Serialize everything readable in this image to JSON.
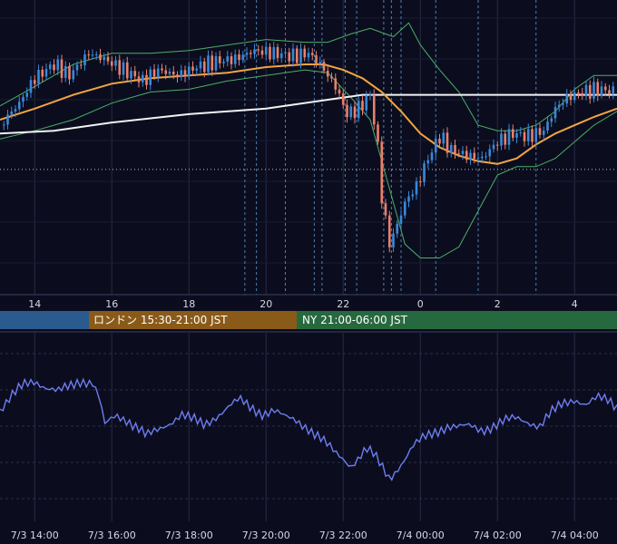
{
  "colors": {
    "background": "#0b0d1f",
    "grid": "#262a44",
    "candle_up": "#3a88d8",
    "candle_down": "#e9806a",
    "ma_short": "#f2a540",
    "ma_long": "#f2f2f2",
    "bollinger": "#4caf65",
    "oscillator": "#6f7df0",
    "session_tokyo": "#2b5a8e",
    "session_london": "#8a5a18",
    "session_ny": "#27693f"
  },
  "sessions": {
    "tokyo": {
      "label": ""
    },
    "london": {
      "label": "ロンドン 15:30-21:00 JST"
    },
    "ny": {
      "label": "NY 21:00-06:00 JST"
    }
  },
  "chart_data": [
    {
      "type": "candlestick",
      "title": "",
      "x_axis_ticks": [
        "14",
        "16",
        "18",
        "20",
        "22",
        "0",
        "2",
        "4"
      ],
      "x_range_hours": [
        13.1,
        29.1
      ],
      "y_range": [
        0,
        1
      ],
      "grid": true,
      "event_lines_hours": [
        19.45,
        19.75,
        20.5,
        21.25,
        21.45,
        22.05,
        22.35,
        23.05,
        23.25,
        23.5,
        0.4,
        1.5,
        3.0
      ],
      "reference_line_level": 0.42,
      "close_points": [
        [
          13.1,
          0.58
        ],
        [
          13.6,
          0.66
        ],
        [
          14.0,
          0.75
        ],
        [
          14.5,
          0.8
        ],
        [
          14.9,
          0.76
        ],
        [
          15.4,
          0.84
        ],
        [
          15.8,
          0.82
        ],
        [
          16.3,
          0.78
        ],
        [
          16.8,
          0.74
        ],
        [
          17.2,
          0.78
        ],
        [
          17.7,
          0.76
        ],
        [
          18.2,
          0.79
        ],
        [
          18.7,
          0.81
        ],
        [
          19.2,
          0.82
        ],
        [
          19.7,
          0.85
        ],
        [
          20.2,
          0.84
        ],
        [
          20.7,
          0.83
        ],
        [
          21.1,
          0.84
        ],
        [
          21.4,
          0.8
        ],
        [
          21.8,
          0.72
        ],
        [
          22.1,
          0.62
        ],
        [
          22.4,
          0.64
        ],
        [
          22.7,
          0.69
        ],
        [
          22.9,
          0.5
        ],
        [
          23.0,
          0.32
        ],
        [
          23.2,
          0.15
        ],
        [
          23.4,
          0.22
        ],
        [
          23.6,
          0.3
        ],
        [
          23.9,
          0.36
        ],
        [
          24.2,
          0.46
        ],
        [
          24.5,
          0.54
        ],
        [
          24.8,
          0.49
        ],
        [
          25.2,
          0.47
        ],
        [
          25.6,
          0.46
        ],
        [
          26.0,
          0.52
        ],
        [
          26.4,
          0.55
        ],
        [
          26.8,
          0.54
        ],
        [
          27.2,
          0.56
        ],
        [
          27.5,
          0.64
        ],
        [
          27.8,
          0.68
        ],
        [
          28.2,
          0.7
        ],
        [
          28.6,
          0.71
        ],
        [
          29.1,
          0.7
        ]
      ],
      "ma_short_points": [
        [
          13.1,
          0.6
        ],
        [
          14.0,
          0.64
        ],
        [
          15.0,
          0.69
        ],
        [
          16.0,
          0.73
        ],
        [
          17.0,
          0.75
        ],
        [
          18.0,
          0.76
        ],
        [
          19.0,
          0.77
        ],
        [
          20.0,
          0.79
        ],
        [
          21.0,
          0.8
        ],
        [
          21.5,
          0.8
        ],
        [
          22.0,
          0.78
        ],
        [
          22.5,
          0.75
        ],
        [
          23.0,
          0.7
        ],
        [
          23.5,
          0.63
        ],
        [
          24.0,
          0.55
        ],
        [
          24.5,
          0.5
        ],
        [
          25.0,
          0.47
        ],
        [
          25.5,
          0.45
        ],
        [
          26.0,
          0.44
        ],
        [
          26.5,
          0.46
        ],
        [
          27.0,
          0.51
        ],
        [
          27.5,
          0.55
        ],
        [
          28.0,
          0.58
        ],
        [
          28.5,
          0.61
        ],
        [
          29.1,
          0.64
        ]
      ],
      "ma_long_points": [
        [
          13.1,
          0.55
        ],
        [
          14.5,
          0.56
        ],
        [
          16.0,
          0.59
        ],
        [
          18.0,
          0.62
        ],
        [
          20.0,
          0.64
        ],
        [
          21.5,
          0.67
        ],
        [
          22.5,
          0.69
        ],
        [
          23.5,
          0.69
        ],
        [
          25.0,
          0.69
        ],
        [
          27.0,
          0.69
        ],
        [
          29.1,
          0.69
        ]
      ],
      "bollinger_upper_points": [
        [
          13.1,
          0.65
        ],
        [
          14.0,
          0.72
        ],
        [
          15.0,
          0.8
        ],
        [
          16.0,
          0.84
        ],
        [
          17.0,
          0.84
        ],
        [
          18.0,
          0.85
        ],
        [
          19.0,
          0.87
        ],
        [
          20.0,
          0.89
        ],
        [
          21.0,
          0.88
        ],
        [
          21.6,
          0.88
        ],
        [
          22.2,
          0.91
        ],
        [
          22.7,
          0.93
        ],
        [
          23.3,
          0.9
        ],
        [
          23.7,
          0.95
        ],
        [
          24.0,
          0.87
        ],
        [
          24.5,
          0.78
        ],
        [
          25.0,
          0.7
        ],
        [
          25.5,
          0.58
        ],
        [
          26.0,
          0.56
        ],
        [
          26.5,
          0.56
        ],
        [
          27.0,
          0.58
        ],
        [
          27.5,
          0.63
        ],
        [
          28.0,
          0.71
        ],
        [
          28.5,
          0.76
        ],
        [
          29.1,
          0.76
        ]
      ],
      "bollinger_lower_points": [
        [
          13.1,
          0.53
        ],
        [
          14.0,
          0.56
        ],
        [
          15.0,
          0.6
        ],
        [
          16.0,
          0.66
        ],
        [
          17.0,
          0.7
        ],
        [
          18.0,
          0.71
        ],
        [
          19.0,
          0.74
        ],
        [
          20.0,
          0.76
        ],
        [
          21.0,
          0.78
        ],
        [
          21.6,
          0.77
        ],
        [
          22.2,
          0.68
        ],
        [
          22.7,
          0.6
        ],
        [
          23.2,
          0.35
        ],
        [
          23.6,
          0.15
        ],
        [
          24.0,
          0.1
        ],
        [
          24.5,
          0.1
        ],
        [
          25.0,
          0.14
        ],
        [
          25.5,
          0.27
        ],
        [
          26.0,
          0.4
        ],
        [
          26.5,
          0.43
        ],
        [
          27.0,
          0.43
        ],
        [
          27.5,
          0.46
        ],
        [
          28.0,
          0.52
        ],
        [
          28.5,
          0.58
        ],
        [
          29.1,
          0.63
        ]
      ]
    },
    {
      "type": "line",
      "title": "",
      "x_axis_ticks": [
        "7/3 14:00",
        "7/3 16:00",
        "7/3 18:00",
        "7/3 20:00",
        "7/3 22:00",
        "7/4 00:00",
        "7/4 02:00",
        "7/4 04:00"
      ],
      "x_range_hours": [
        13.1,
        29.1
      ],
      "y_range": [
        0,
        1
      ],
      "grid": true,
      "series": [
        {
          "points": [
            [
              13.1,
              0.6
            ],
            [
              13.4,
              0.68
            ],
            [
              13.7,
              0.75
            ],
            [
              14.0,
              0.78
            ],
            [
              14.3,
              0.74
            ],
            [
              14.6,
              0.71
            ],
            [
              14.9,
              0.74
            ],
            [
              15.2,
              0.78
            ],
            [
              15.5,
              0.77
            ],
            [
              15.7,
              0.66
            ],
            [
              15.8,
              0.5
            ],
            [
              16.1,
              0.56
            ],
            [
              16.4,
              0.54
            ],
            [
              16.7,
              0.49
            ],
            [
              16.9,
              0.44
            ],
            [
              17.2,
              0.47
            ],
            [
              17.5,
              0.52
            ],
            [
              17.8,
              0.58
            ],
            [
              18.1,
              0.54
            ],
            [
              18.4,
              0.5
            ],
            [
              18.7,
              0.56
            ],
            [
              19.0,
              0.62
            ],
            [
              19.3,
              0.66
            ],
            [
              19.6,
              0.61
            ],
            [
              19.9,
              0.58
            ],
            [
              20.2,
              0.6
            ],
            [
              20.5,
              0.55
            ],
            [
              20.8,
              0.53
            ],
            [
              21.1,
              0.49
            ],
            [
              21.4,
              0.43
            ],
            [
              21.6,
              0.38
            ],
            [
              21.8,
              0.33
            ],
            [
              22.0,
              0.3
            ],
            [
              22.2,
              0.26
            ],
            [
              22.4,
              0.31
            ],
            [
              22.6,
              0.36
            ],
            [
              22.8,
              0.32
            ],
            [
              23.0,
              0.25
            ],
            [
              23.2,
              0.18
            ],
            [
              23.4,
              0.24
            ],
            [
              23.6,
              0.3
            ],
            [
              23.8,
              0.37
            ],
            [
              24.1,
              0.43
            ],
            [
              24.4,
              0.47
            ],
            [
              24.7,
              0.5
            ],
            [
              25.0,
              0.49
            ],
            [
              25.3,
              0.5
            ],
            [
              25.6,
              0.48
            ],
            [
              25.9,
              0.5
            ],
            [
              26.2,
              0.53
            ],
            [
              26.5,
              0.55
            ],
            [
              26.8,
              0.53
            ],
            [
              27.1,
              0.5
            ],
            [
              27.4,
              0.58
            ],
            [
              27.7,
              0.64
            ],
            [
              28.0,
              0.67
            ],
            [
              28.3,
              0.63
            ],
            [
              28.6,
              0.67
            ],
            [
              28.9,
              0.66
            ],
            [
              29.1,
              0.62
            ]
          ]
        }
      ]
    }
  ]
}
